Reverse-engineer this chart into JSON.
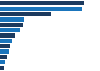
{
  "values": [
    13200,
    12996,
    8080,
    3800,
    3550,
    3100,
    2300,
    1850,
    1600,
    1350,
    1050,
    850,
    650
  ],
  "colors": [
    "#1c3a5e",
    "#1a75bc",
    "#1c3a5e",
    "#1a75bc",
    "#1c3a5e",
    "#1a75bc",
    "#1c3a5e",
    "#1a75bc",
    "#1c3a5e",
    "#1a75bc",
    "#1c3a5e",
    "#1a75bc",
    "#1c3a5e"
  ],
  "background_color": "#ffffff",
  "bar_height": 0.78,
  "xlim": [
    0,
    14500
  ],
  "figsize": [
    1.0,
    0.71
  ],
  "dpi": 100
}
